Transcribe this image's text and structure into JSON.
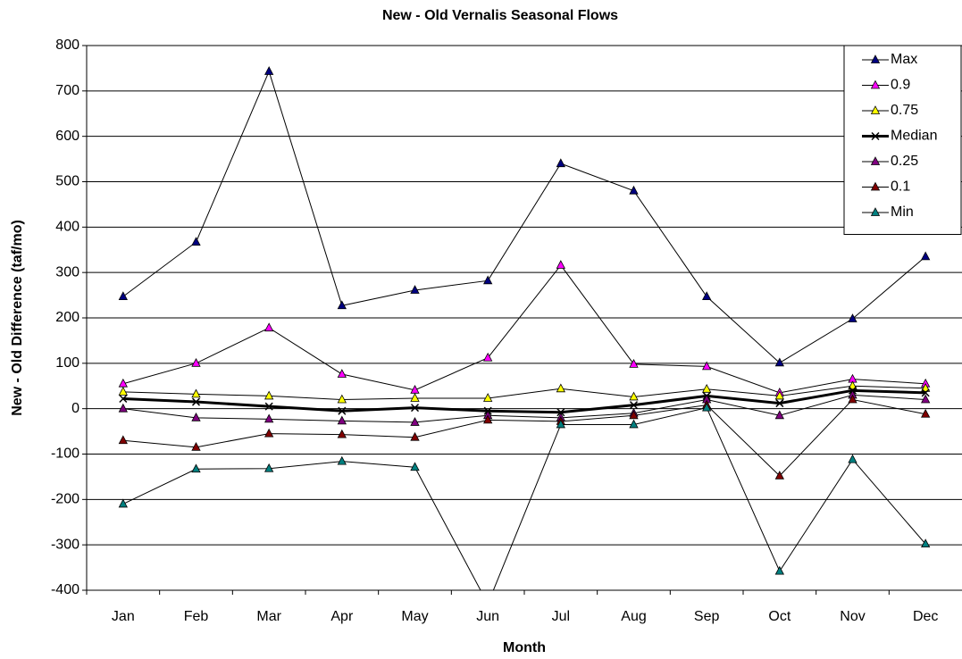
{
  "chart_data": {
    "type": "line",
    "title": "New - Old Vernalis Seasonal Flows",
    "x_label": "Month",
    "y_label": "New - Old Difference (taf/mo)",
    "categories": [
      "Jan",
      "Feb",
      "Mar",
      "Apr",
      "May",
      "Jun",
      "Jul",
      "Aug",
      "Sep",
      "Oct",
      "Nov",
      "Dec"
    ],
    "series": [
      {
        "name": "Max",
        "color": "#000080",
        "marker": "triangle",
        "line_width": 1,
        "values": [
          247,
          367,
          743,
          227,
          261,
          282,
          540,
          480,
          247,
          101,
          198,
          335
        ]
      },
      {
        "name": "0.9",
        "color": "#FF00FF",
        "marker": "triangle",
        "line_width": 1,
        "values": [
          55,
          100,
          178,
          76,
          41,
          112,
          316,
          98,
          93,
          35,
          65,
          55
        ]
      },
      {
        "name": "0.75",
        "color": "#FFFF00",
        "marker": "triangle",
        "line_width": 1,
        "values": [
          37,
          32,
          28,
          20,
          23,
          23,
          44,
          26,
          43,
          28,
          50,
          45
        ]
      },
      {
        "name": "Median",
        "color": "#000000",
        "marker": "x",
        "line_width": 3,
        "values": [
          22,
          15,
          5,
          -5,
          2,
          -5,
          -8,
          8,
          28,
          12,
          40,
          35
        ]
      },
      {
        "name": "0.25",
        "color": "#800080",
        "marker": "triangle",
        "line_width": 1,
        "values": [
          0,
          -20,
          -23,
          -27,
          -30,
          -15,
          -20,
          -10,
          20,
          -15,
          30,
          20
        ]
      },
      {
        "name": "0.1",
        "color": "#800000",
        "marker": "triangle",
        "line_width": 1,
        "values": [
          -70,
          -85,
          -55,
          -57,
          -63,
          -25,
          -28,
          -15,
          8,
          -148,
          20,
          -12
        ]
      },
      {
        "name": "Min",
        "color": "#008080",
        "marker": "triangle",
        "line_width": 1,
        "values": [
          -210,
          -133,
          -132,
          -116,
          -129,
          -430,
          -35,
          -35,
          2,
          -358,
          -112,
          -298
        ]
      }
    ],
    "ylim": [
      -400,
      800
    ],
    "yticks": [
      -400,
      -300,
      -200,
      -100,
      0,
      100,
      200,
      300,
      400,
      500,
      600,
      700,
      800
    ],
    "grid": true,
    "legend": "top-right"
  }
}
